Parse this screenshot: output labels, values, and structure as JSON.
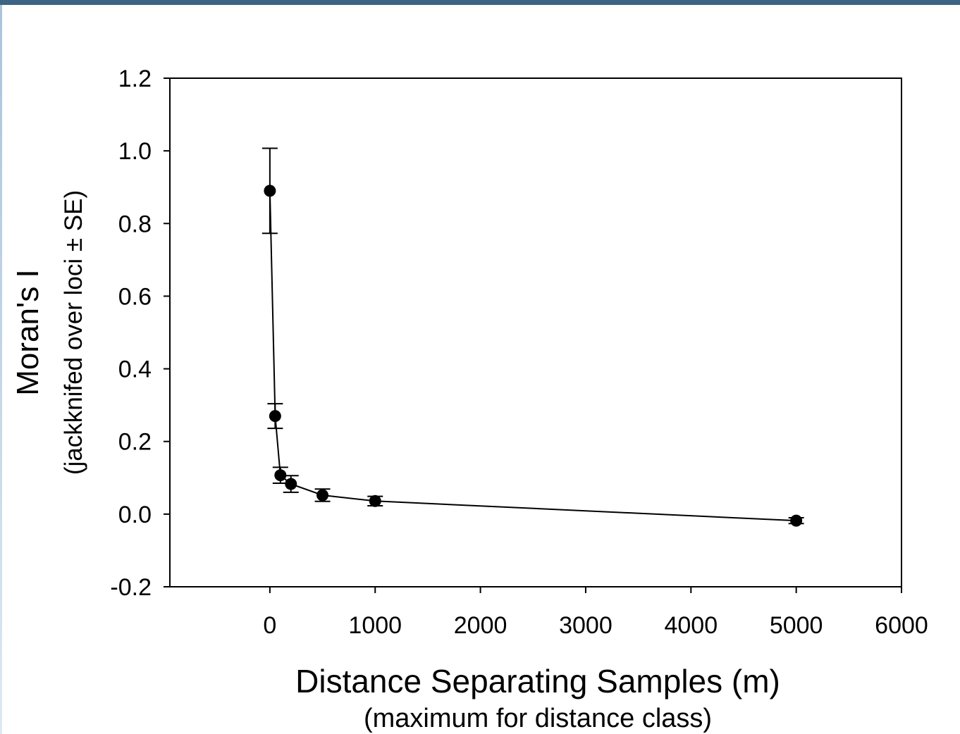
{
  "chart_data": {
    "type": "scatter",
    "title": "",
    "xlabel": "Distance Separating Samples (m)",
    "xlabel_sub": "(maximum for distance class)",
    "ylabel": "Moran's I",
    "ylabel_sub": "(jackknifed over loci ± SE)",
    "xlim": [
      -950,
      6000
    ],
    "ylim": [
      -0.2,
      1.2
    ],
    "x_ticks": [
      0,
      1000,
      2000,
      3000,
      4000,
      5000,
      6000
    ],
    "y_ticks": [
      -0.2,
      0.0,
      0.2,
      0.4,
      0.6,
      0.8,
      1.0,
      1.2
    ],
    "x_tick_labels": [
      "0",
      "1000",
      "2000",
      "3000",
      "4000",
      "5000",
      "6000"
    ],
    "y_tick_labels": [
      "-0.2",
      "0.0",
      "0.2",
      "0.4",
      "0.6",
      "0.8",
      "1.0",
      "1.2"
    ],
    "grid": false,
    "connected": true,
    "series": [
      {
        "x": [
          0,
          50,
          100,
          200,
          500,
          1000,
          5000
        ],
        "y": [
          0.89,
          0.27,
          0.107,
          0.083,
          0.052,
          0.036,
          -0.018
        ],
        "err": [
          0.117,
          0.034,
          0.022,
          0.023,
          0.017,
          0.013,
          0.008
        ]
      }
    ]
  }
}
